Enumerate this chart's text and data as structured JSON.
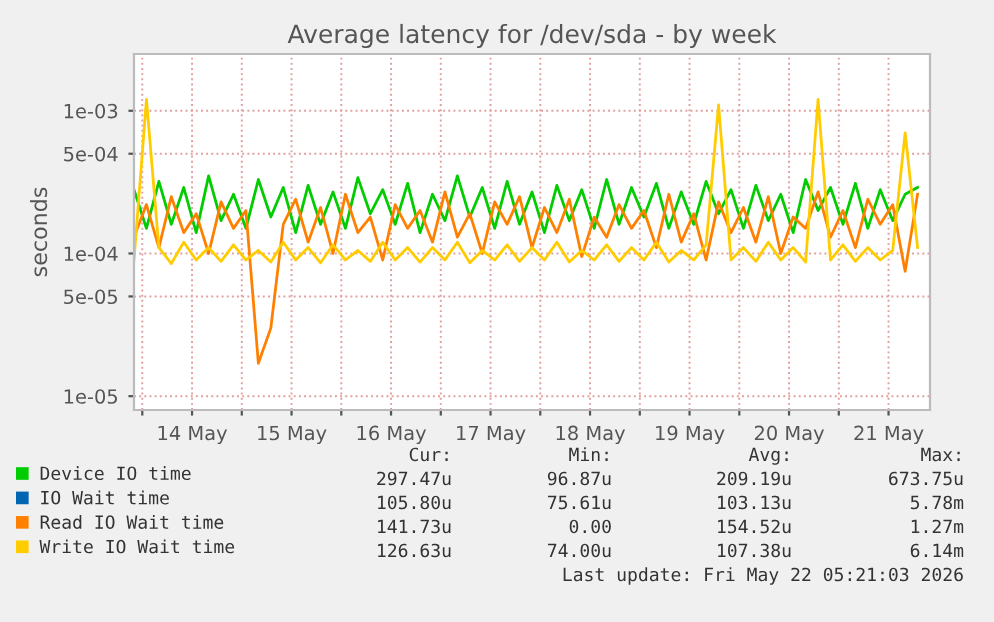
{
  "chart_data": {
    "type": "line",
    "title": "Average latency for /dev/sda - by week",
    "ylabel": "seconds",
    "log": "y",
    "grid": true,
    "legend": "bottom",
    "marker": "none",
    "line_style": "solid",
    "xlim": [
      "2026-05-13T22:00",
      "2026-05-21T22:00"
    ],
    "xticks": [
      {
        "value": "2026-05-14T00:00",
        "label": null
      },
      {
        "value": "2026-05-14T12:00",
        "label": "14 May"
      },
      {
        "value": "2026-05-15T00:00",
        "label": null
      },
      {
        "value": "2026-05-15T12:00",
        "label": "15 May"
      },
      {
        "value": "2026-05-16T00:00",
        "label": null
      },
      {
        "value": "2026-05-16T12:00",
        "label": "16 May"
      },
      {
        "value": "2026-05-17T00:00",
        "label": null
      },
      {
        "value": "2026-05-17T12:00",
        "label": "17 May"
      },
      {
        "value": "2026-05-18T00:00",
        "label": null
      },
      {
        "value": "2026-05-18T12:00",
        "label": "18 May"
      },
      {
        "value": "2026-05-19T00:00",
        "label": null
      },
      {
        "value": "2026-05-19T12:00",
        "label": "19 May"
      },
      {
        "value": "2026-05-20T00:00",
        "label": null
      },
      {
        "value": "2026-05-20T12:00",
        "label": "20 May"
      },
      {
        "value": "2026-05-21T00:00",
        "label": null
      },
      {
        "value": "2026-05-21T12:00",
        "label": "21 May"
      }
    ],
    "ylim": [
      8e-06,
      0.0025
    ],
    "yticks": [
      {
        "value": 1e-05,
        "label": "1e-05"
      },
      {
        "value": 5e-05,
        "label": "5e-05"
      },
      {
        "value": 0.0001,
        "label": "1e-04"
      },
      {
        "value": 0.0005,
        "label": "5e-04"
      },
      {
        "value": 0.001,
        "label": "1e-03"
      }
    ],
    "x": [
      "2026-05-13T22:00",
      "2026-05-14T01:00",
      "2026-05-14T04:00",
      "2026-05-14T07:00",
      "2026-05-14T10:00",
      "2026-05-14T13:00",
      "2026-05-14T16:00",
      "2026-05-14T19:00",
      "2026-05-14T22:00",
      "2026-05-15T01:00",
      "2026-05-15T04:00",
      "2026-05-15T07:00",
      "2026-05-15T10:00",
      "2026-05-15T13:00",
      "2026-05-15T16:00",
      "2026-05-15T19:00",
      "2026-05-15T22:00",
      "2026-05-16T01:00",
      "2026-05-16T04:00",
      "2026-05-16T07:00",
      "2026-05-16T10:00",
      "2026-05-16T13:00",
      "2026-05-16T16:00",
      "2026-05-16T19:00",
      "2026-05-16T22:00",
      "2026-05-17T01:00",
      "2026-05-17T04:00",
      "2026-05-17T07:00",
      "2026-05-17T10:00",
      "2026-05-17T13:00",
      "2026-05-17T16:00",
      "2026-05-17T19:00",
      "2026-05-17T22:00",
      "2026-05-18T01:00",
      "2026-05-18T04:00",
      "2026-05-18T07:00",
      "2026-05-18T10:00",
      "2026-05-18T13:00",
      "2026-05-18T16:00",
      "2026-05-18T19:00",
      "2026-05-18T22:00",
      "2026-05-19T01:00",
      "2026-05-19T04:00",
      "2026-05-19T07:00",
      "2026-05-19T10:00",
      "2026-05-19T13:00",
      "2026-05-19T16:00",
      "2026-05-19T19:00",
      "2026-05-19T22:00",
      "2026-05-20T01:00",
      "2026-05-20T04:00",
      "2026-05-20T07:00",
      "2026-05-20T10:00",
      "2026-05-20T13:00",
      "2026-05-20T16:00",
      "2026-05-20T19:00",
      "2026-05-20T22:00",
      "2026-05-21T01:00",
      "2026-05-21T04:00",
      "2026-05-21T07:00",
      "2026-05-21T10:00",
      "2026-05-21T13:00",
      "2026-05-21T16:00",
      "2026-05-21T19:00"
    ],
    "series": [
      {
        "name": "Device IO time",
        "color": "#00cc00",
        "values": [
          0.00028,
          0.00015,
          0.00032,
          0.00016,
          0.00029,
          0.00014,
          0.00035,
          0.00017,
          0.00026,
          0.00015,
          0.00033,
          0.00018,
          0.00029,
          0.00014,
          0.0003,
          0.00016,
          0.00027,
          0.00015,
          0.00034,
          0.00019,
          0.00028,
          0.00016,
          0.00031,
          0.00014,
          0.00026,
          0.00017,
          0.00035,
          0.00018,
          0.00029,
          0.00015,
          0.00032,
          0.00016,
          0.00027,
          0.00014,
          0.0003,
          0.00017,
          0.00028,
          0.00015,
          0.00033,
          0.00016,
          0.00029,
          0.00018,
          0.00031,
          0.00015,
          0.00027,
          0.00016,
          0.00032,
          0.00019,
          0.00028,
          0.00015,
          0.0003,
          0.00017,
          0.00026,
          0.00014,
          0.00033,
          0.0002,
          0.00029,
          0.00016,
          0.00031,
          0.00015,
          0.00028,
          0.00017,
          0.00026,
          0.00029
        ]
      },
      {
        "name": "IO Wait time",
        "color": "#0066b3",
        "values": [
          null,
          null,
          null,
          null,
          null,
          null,
          null,
          null,
          null,
          null,
          null,
          null,
          null,
          null,
          null,
          null,
          null,
          null,
          null,
          null,
          null,
          null,
          null,
          null,
          null,
          null,
          null,
          null,
          null,
          null,
          null,
          null,
          null,
          null,
          null,
          null,
          null,
          null,
          null,
          null,
          null,
          null,
          null,
          null,
          null,
          null,
          null,
          null,
          null,
          null,
          null,
          null,
          null,
          null,
          null,
          null,
          null,
          null,
          null,
          null,
          null,
          null,
          null,
          null
        ]
      },
      {
        "name": "Read IO Wait time",
        "color": "#ff8000",
        "values": [
          0.00013,
          0.00022,
          0.00011,
          0.00025,
          0.00014,
          0.00019,
          0.0001,
          0.00023,
          0.00015,
          0.0002,
          1.7e-05,
          3e-05,
          0.00016,
          0.00024,
          0.00012,
          0.00021,
          0.0001,
          0.00026,
          0.00014,
          0.00018,
          9e-05,
          0.00022,
          0.00015,
          0.0002,
          0.00012,
          0.00027,
          0.00013,
          0.00019,
          0.0001,
          0.00023,
          0.00016,
          0.00025,
          0.00011,
          0.00021,
          0.00014,
          0.00024,
          9.5e-05,
          0.00018,
          0.00013,
          0.00022,
          0.00015,
          0.0002,
          0.00011,
          0.00026,
          0.00012,
          0.00019,
          9e-05,
          0.00023,
          0.00014,
          0.00021,
          0.00012,
          0.00025,
          0.0001,
          0.00018,
          0.00015,
          0.00027,
          0.00013,
          0.0002,
          0.00011,
          0.00024,
          0.00016,
          0.00022,
          7.5e-05,
          0.00026
        ]
      },
      {
        "name": "Write IO Wait time",
        "color": "#ffcc00",
        "values": [
          9e-05,
          0.0012,
          0.00011,
          8.5e-05,
          0.00012,
          9e-05,
          0.00011,
          8.8e-05,
          0.000115,
          9e-05,
          0.000105,
          8.7e-05,
          0.00012,
          9e-05,
          0.00011,
          8.6e-05,
          0.000115,
          9e-05,
          0.000105,
          8.8e-05,
          0.00012,
          9e-05,
          0.00011,
          8.7e-05,
          0.00011,
          9e-05,
          0.00012,
          8.6e-05,
          0.000105,
          9e-05,
          0.000115,
          8.8e-05,
          0.00011,
          9e-05,
          0.00012,
          8.7e-05,
          0.000105,
          9e-05,
          0.000115,
          8.8e-05,
          0.00011,
          9e-05,
          0.00012,
          8.7e-05,
          0.000105,
          9e-05,
          0.000115,
          0.0011,
          9e-05,
          0.00011,
          8.8e-05,
          0.00012,
          9e-05,
          0.00011,
          8.7e-05,
          0.0012,
          9e-05,
          0.000115,
          8.8e-05,
          0.00011,
          9e-05,
          0.000105,
          0.0007,
          0.00011
        ]
      }
    ],
    "annotations": [
      "Cur:",
      "Min:",
      "Avg:",
      "Max:",
      "297.47u",
      "96.87u",
      "209.19u",
      "673.75u",
      "105.80u",
      "75.61u",
      "103.13u",
      "5.78m",
      "141.73u",
      "0.00",
      "154.52u",
      "1.27m",
      "126.63u",
      "74.00u",
      "107.38u",
      "6.14m",
      "Last update: Fri May 22 05:21:03 2026"
    ]
  }
}
